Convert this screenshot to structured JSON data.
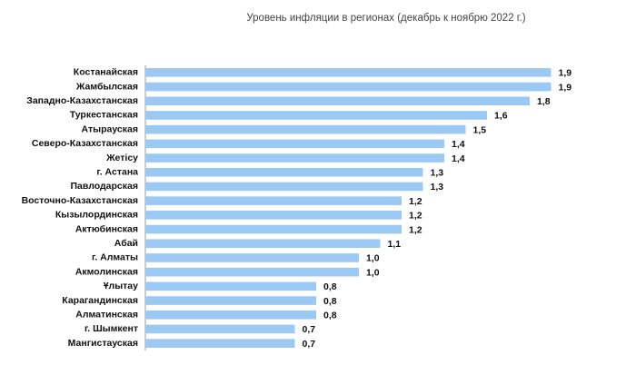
{
  "chart_data": {
    "type": "bar",
    "orientation": "horizontal",
    "title": "Уровень инфляции в регионах (декабрь к ноябрю 2022 г.)",
    "categories": [
      "Костанайская",
      "Жамбылская",
      "Западно-Казахстанская",
      "Туркестанская",
      "Атырауская",
      "Северо-Казахстанская",
      "Жетісу",
      "г. Астана",
      "Павлодарская",
      "Восточно-Казахстанская",
      "Кызылординская",
      "Актюбинская",
      "Абай",
      "г. Алматы",
      "Акмолинская",
      "Ұлытау",
      "Карагандинская",
      "Алматинская",
      "г. Шымкент",
      "Мангистауская"
    ],
    "values": [
      1.9,
      1.9,
      1.8,
      1.6,
      1.5,
      1.4,
      1.4,
      1.3,
      1.3,
      1.2,
      1.2,
      1.2,
      1.1,
      1.0,
      1.0,
      0.8,
      0.8,
      0.8,
      0.7,
      0.7
    ],
    "value_labels": [
      "1,9",
      "1,9",
      "1,8",
      "1,6",
      "1,5",
      "1,4",
      "1,4",
      "1,3",
      "1,3",
      "1,2",
      "1,2",
      "1,2",
      "1,1",
      "1,0",
      "1,0",
      "0,8",
      "0,8",
      "0,8",
      "0,7",
      "0,7"
    ],
    "color": "#9cc9f4",
    "xlim": [
      0,
      2
    ]
  }
}
